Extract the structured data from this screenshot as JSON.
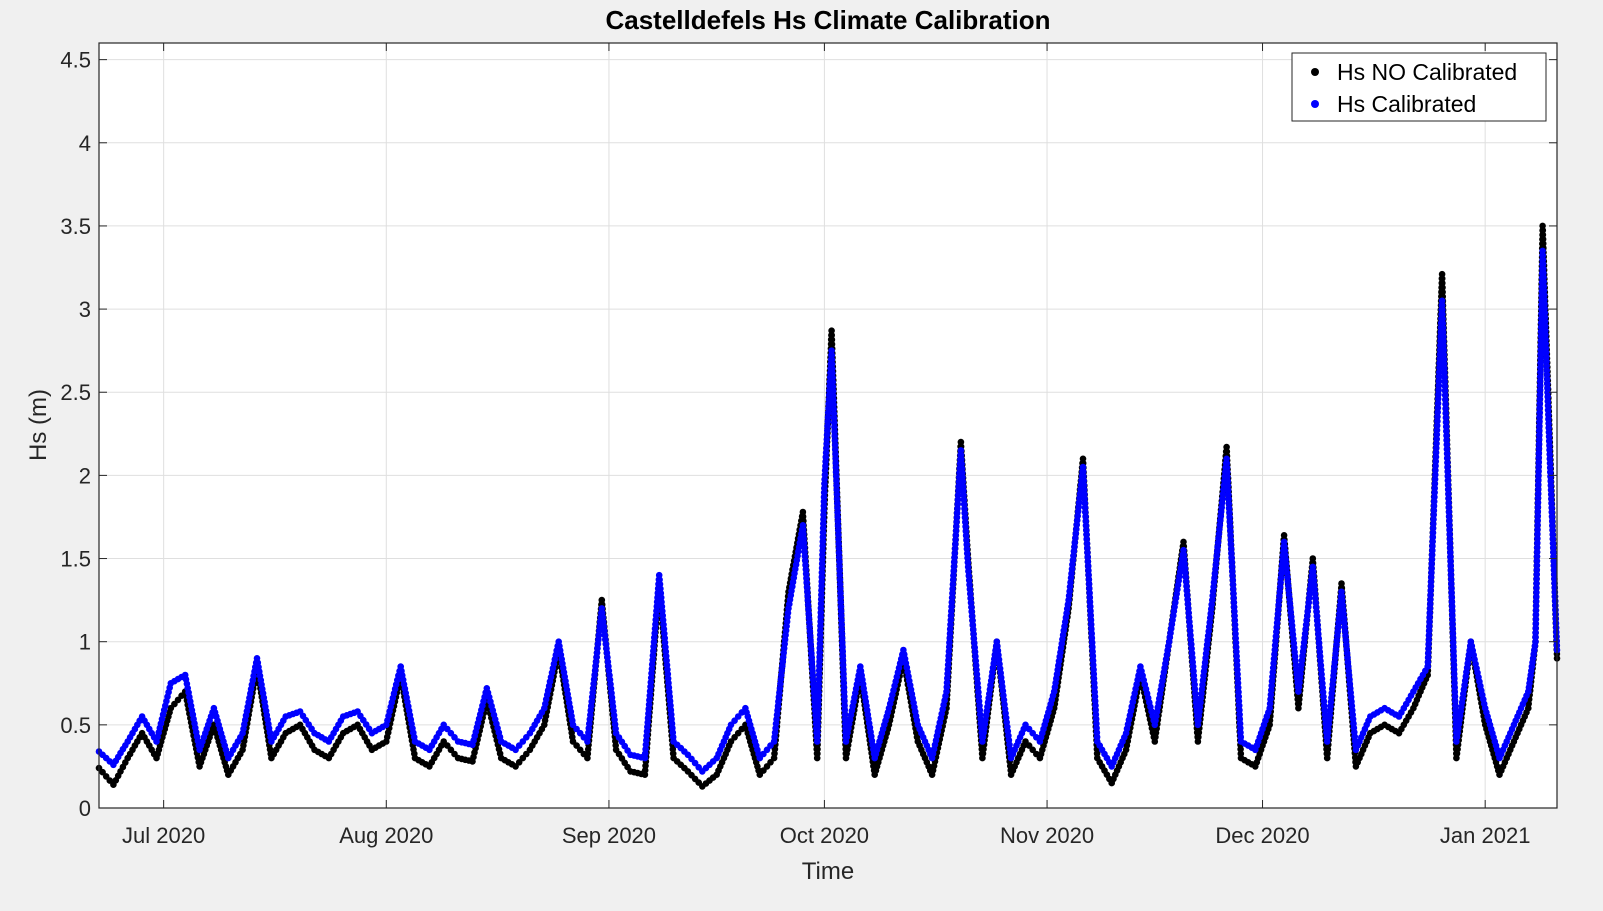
{
  "chart_data": {
    "type": "scatter",
    "title": "Castelldefels Hs Climate Calibration",
    "xlabel": "Time",
    "ylabel": "Hs (m)",
    "x_range": [
      "2020-06-22",
      "2021-01-11"
    ],
    "ylim": [
      0,
      4.6
    ],
    "x_ticks": [
      {
        "date": "2020-07-01",
        "label": "Jul 2020"
      },
      {
        "date": "2020-08-01",
        "label": "Aug 2020"
      },
      {
        "date": "2020-09-01",
        "label": "Sep 2020"
      },
      {
        "date": "2020-10-01",
        "label": "Oct 2020"
      },
      {
        "date": "2020-11-01",
        "label": "Nov 2020"
      },
      {
        "date": "2020-12-01",
        "label": "Dec 2020"
      },
      {
        "date": "2021-01-01",
        "label": "Jan 2021"
      }
    ],
    "y_ticks": [
      0,
      0.5,
      1,
      1.5,
      2,
      2.5,
      3,
      3.5,
      4,
      4.5
    ],
    "y_tick_labels": [
      "0",
      "0.5",
      "1",
      "1.5",
      "2",
      "2.5",
      "3",
      "3.5",
      "4",
      "4.5"
    ],
    "grid": true,
    "legend_position": "top-right",
    "series": [
      {
        "name": "Hs NO Calibrated",
        "color": "#000000",
        "x": [
          "2020-06-22",
          "2020-06-24",
          "2020-06-26",
          "2020-06-28",
          "2020-06-30",
          "2020-07-02",
          "2020-07-04",
          "2020-07-06",
          "2020-07-08",
          "2020-07-10",
          "2020-07-12",
          "2020-07-14",
          "2020-07-16",
          "2020-07-18",
          "2020-07-20",
          "2020-07-22",
          "2020-07-24",
          "2020-07-26",
          "2020-07-28",
          "2020-07-30",
          "2020-08-01",
          "2020-08-03",
          "2020-08-05",
          "2020-08-07",
          "2020-08-09",
          "2020-08-11",
          "2020-08-13",
          "2020-08-15",
          "2020-08-17",
          "2020-08-19",
          "2020-08-21",
          "2020-08-23",
          "2020-08-25",
          "2020-08-27",
          "2020-08-29",
          "2020-08-31",
          "2020-09-02",
          "2020-09-04",
          "2020-09-06",
          "2020-09-08",
          "2020-09-10",
          "2020-09-12",
          "2020-09-14",
          "2020-09-16",
          "2020-09-18",
          "2020-09-20",
          "2020-09-22",
          "2020-09-24",
          "2020-09-26",
          "2020-09-28",
          "2020-09-30",
          "2020-10-01",
          "2020-10-02",
          "2020-10-04",
          "2020-10-06",
          "2020-10-08",
          "2020-10-10",
          "2020-10-12",
          "2020-10-14",
          "2020-10-16",
          "2020-10-18",
          "2020-10-20",
          "2020-10-21",
          "2020-10-23",
          "2020-10-25",
          "2020-10-27",
          "2020-10-29",
          "2020-10-31",
          "2020-11-02",
          "2020-11-04",
          "2020-11-06",
          "2020-11-08",
          "2020-11-10",
          "2020-11-12",
          "2020-11-14",
          "2020-11-16",
          "2020-11-18",
          "2020-11-20",
          "2020-11-22",
          "2020-11-24",
          "2020-11-26",
          "2020-11-28",
          "2020-11-30",
          "2020-12-02",
          "2020-12-04",
          "2020-12-06",
          "2020-12-08",
          "2020-12-10",
          "2020-12-12",
          "2020-12-14",
          "2020-12-16",
          "2020-12-18",
          "2020-12-20",
          "2020-12-22",
          "2020-12-24",
          "2020-12-26",
          "2020-12-28",
          "2020-12-30",
          "2021-01-01",
          "2021-01-03",
          "2021-01-05",
          "2021-01-07",
          "2021-01-08",
          "2021-01-09",
          "2021-01-10",
          "2021-01-11"
        ],
        "y": [
          0.24,
          0.14,
          0.3,
          0.45,
          0.3,
          0.6,
          0.7,
          0.25,
          0.5,
          0.2,
          0.35,
          0.85,
          0.3,
          0.45,
          0.5,
          0.35,
          0.3,
          0.45,
          0.5,
          0.35,
          0.4,
          0.8,
          0.3,
          0.25,
          0.4,
          0.3,
          0.28,
          0.65,
          0.3,
          0.25,
          0.35,
          0.5,
          0.95,
          0.4,
          0.3,
          1.25,
          0.35,
          0.22,
          0.2,
          1.35,
          0.3,
          0.22,
          0.13,
          0.2,
          0.4,
          0.5,
          0.2,
          0.3,
          1.3,
          1.78,
          0.3,
          1.8,
          2.87,
          0.3,
          0.8,
          0.2,
          0.5,
          0.9,
          0.4,
          0.2,
          0.6,
          2.2,
          1.5,
          0.3,
          1.0,
          0.2,
          0.4,
          0.3,
          0.6,
          1.2,
          2.1,
          0.3,
          0.15,
          0.35,
          0.8,
          0.4,
          1.0,
          1.6,
          0.4,
          1.2,
          2.17,
          0.3,
          0.25,
          0.5,
          1.64,
          0.6,
          1.5,
          0.3,
          1.35,
          0.25,
          0.45,
          0.5,
          0.45,
          0.6,
          0.8,
          3.21,
          0.3,
          1.0,
          0.5,
          0.2,
          0.4,
          0.6,
          1.0,
          3.5,
          2.2,
          0.9
        ]
      },
      {
        "name": "Hs Calibrated",
        "color": "#0000ff",
        "x": [
          "2020-06-22",
          "2020-06-24",
          "2020-06-26",
          "2020-06-28",
          "2020-06-30",
          "2020-07-02",
          "2020-07-04",
          "2020-07-06",
          "2020-07-08",
          "2020-07-10",
          "2020-07-12",
          "2020-07-14",
          "2020-07-16",
          "2020-07-18",
          "2020-07-20",
          "2020-07-22",
          "2020-07-24",
          "2020-07-26",
          "2020-07-28",
          "2020-07-30",
          "2020-08-01",
          "2020-08-03",
          "2020-08-05",
          "2020-08-07",
          "2020-08-09",
          "2020-08-11",
          "2020-08-13",
          "2020-08-15",
          "2020-08-17",
          "2020-08-19",
          "2020-08-21",
          "2020-08-23",
          "2020-08-25",
          "2020-08-27",
          "2020-08-29",
          "2020-08-31",
          "2020-09-02",
          "2020-09-04",
          "2020-09-06",
          "2020-09-08",
          "2020-09-10",
          "2020-09-12",
          "2020-09-14",
          "2020-09-16",
          "2020-09-18",
          "2020-09-20",
          "2020-09-22",
          "2020-09-24",
          "2020-09-26",
          "2020-09-28",
          "2020-09-30",
          "2020-10-01",
          "2020-10-02",
          "2020-10-04",
          "2020-10-06",
          "2020-10-08",
          "2020-10-10",
          "2020-10-12",
          "2020-10-14",
          "2020-10-16",
          "2020-10-18",
          "2020-10-20",
          "2020-10-21",
          "2020-10-23",
          "2020-10-25",
          "2020-10-27",
          "2020-10-29",
          "2020-10-31",
          "2020-11-02",
          "2020-11-04",
          "2020-11-06",
          "2020-11-08",
          "2020-11-10",
          "2020-11-12",
          "2020-11-14",
          "2020-11-16",
          "2020-11-18",
          "2020-11-20",
          "2020-11-22",
          "2020-11-24",
          "2020-11-26",
          "2020-11-28",
          "2020-11-30",
          "2020-12-02",
          "2020-12-04",
          "2020-12-06",
          "2020-12-08",
          "2020-12-10",
          "2020-12-12",
          "2020-12-14",
          "2020-12-16",
          "2020-12-18",
          "2020-12-20",
          "2020-12-22",
          "2020-12-24",
          "2020-12-26",
          "2020-12-28",
          "2020-12-30",
          "2021-01-01",
          "2021-01-03",
          "2021-01-05",
          "2021-01-07",
          "2021-01-08",
          "2021-01-09",
          "2021-01-10",
          "2021-01-11"
        ],
        "y": [
          0.34,
          0.26,
          0.4,
          0.55,
          0.4,
          0.75,
          0.8,
          0.35,
          0.6,
          0.3,
          0.45,
          0.9,
          0.4,
          0.55,
          0.58,
          0.45,
          0.4,
          0.55,
          0.58,
          0.45,
          0.5,
          0.85,
          0.4,
          0.35,
          0.5,
          0.4,
          0.38,
          0.72,
          0.4,
          0.35,
          0.45,
          0.6,
          1.0,
          0.5,
          0.4,
          1.2,
          0.45,
          0.32,
          0.3,
          1.4,
          0.4,
          0.32,
          0.22,
          0.3,
          0.5,
          0.6,
          0.3,
          0.4,
          1.2,
          1.7,
          0.4,
          1.95,
          2.75,
          0.4,
          0.85,
          0.3,
          0.6,
          0.95,
          0.5,
          0.3,
          0.7,
          2.15,
          1.45,
          0.4,
          1.0,
          0.3,
          0.5,
          0.4,
          0.7,
          1.25,
          2.05,
          0.4,
          0.25,
          0.45,
          0.85,
          0.5,
          1.0,
          1.55,
          0.5,
          1.25,
          2.1,
          0.4,
          0.35,
          0.6,
          1.6,
          0.7,
          1.45,
          0.4,
          1.3,
          0.35,
          0.55,
          0.6,
          0.55,
          0.7,
          0.85,
          3.05,
          0.4,
          1.0,
          0.6,
          0.3,
          0.5,
          0.7,
          1.0,
          3.35,
          2.1,
          0.95
        ]
      }
    ]
  }
}
